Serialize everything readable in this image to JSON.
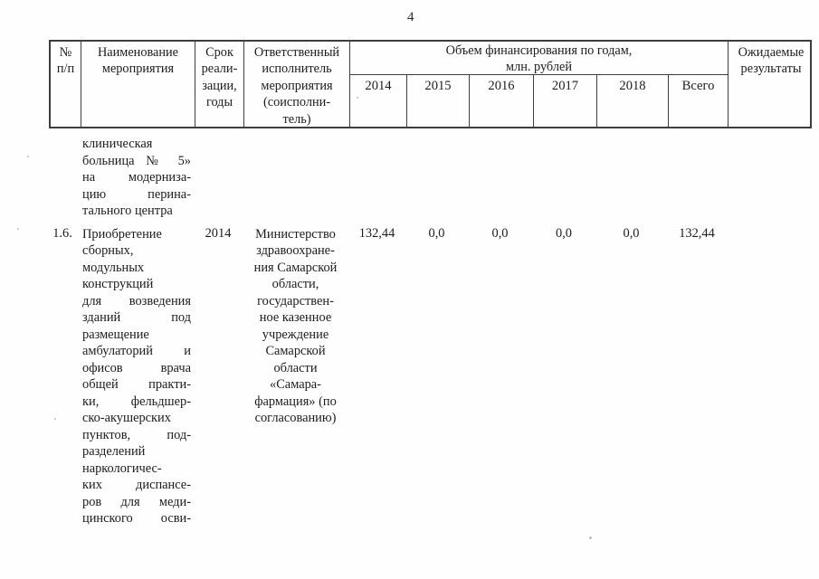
{
  "page": {
    "number": "4"
  },
  "table": {
    "header": {
      "num": [
        "№",
        "п/п"
      ],
      "name": [
        "Наименование",
        "мероприятия"
      ],
      "term": [
        "Срок",
        "реали-",
        "зации,",
        "годы"
      ],
      "executor": [
        "Ответственный",
        "исполнитель",
        "мероприятия",
        "(соисполни-",
        "тель)"
      ],
      "funding_span": [
        "Объем финансирования по годам,",
        "млн. рублей"
      ],
      "years": [
        "2014",
        "2015",
        "2016",
        "2017",
        "2018",
        "Всего"
      ],
      "expected": [
        "Ожидаемые",
        "результаты"
      ]
    },
    "rows": [
      {
        "num": "",
        "name_lines": [
          {
            "t": "клиническая",
            "j": false
          },
          {
            "t": "больница № 5»",
            "j": true
          },
          {
            "t": "на модерниза-",
            "j": true
          },
          {
            "t": "цию перина-",
            "j": true
          },
          {
            "t": "тального центра",
            "j": false
          }
        ],
        "term": "",
        "executor_lines": [],
        "values": [
          "",
          "",
          "",
          "",
          "",
          ""
        ],
        "expected": ""
      },
      {
        "num": "1.6.",
        "name_lines": [
          {
            "t": "Приобретение",
            "j": false
          },
          {
            "t": "сборных,",
            "j": false
          },
          {
            "t": "модульных",
            "j": false
          },
          {
            "t": "конструкций",
            "j": false
          },
          {
            "t": "для возведения",
            "j": true
          },
          {
            "t": "зданий под",
            "j": true
          },
          {
            "t": "размещение",
            "j": false
          },
          {
            "t": "амбулаторий и",
            "j": true
          },
          {
            "t": "офисов врача",
            "j": true
          },
          {
            "t": "общей практи-",
            "j": true
          },
          {
            "t": "ки, фельдшер-",
            "j": true
          },
          {
            "t": "ско-акушерских",
            "j": false
          },
          {
            "t": "пунктов, под-",
            "j": true
          },
          {
            "t": "разделений",
            "j": false
          },
          {
            "t": "наркологичес-",
            "j": false
          },
          {
            "t": "ких диспансе-",
            "j": true
          },
          {
            "t": "ров для меди-",
            "j": true
          },
          {
            "t": "цинского осви-",
            "j": true
          }
        ],
        "term": "2014",
        "executor_lines": [
          "Министерство",
          "здравоохране-",
          "ния Самарской",
          "области,",
          "государствен-",
          "ное казенное",
          "учреждение",
          "Самарской",
          "области",
          "«Самара-",
          "фармация» (по",
          "согласованию)"
        ],
        "values": [
          "132,44",
          "0,0",
          "0,0",
          "0,0",
          "0,0",
          "132,44"
        ],
        "expected": ""
      }
    ]
  }
}
